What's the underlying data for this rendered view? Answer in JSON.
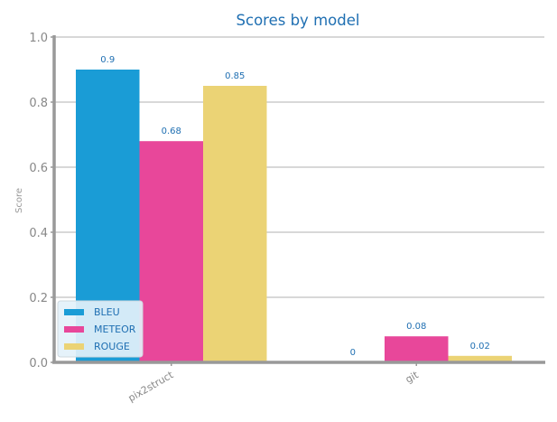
{
  "chart_data": {
    "type": "bar",
    "title": "Scores by model",
    "xlabel": "",
    "ylabel": "Score",
    "ylim": [
      0,
      1.0
    ],
    "yticks": [
      "0.0",
      "0.2",
      "0.4",
      "0.6",
      "0.8",
      "1.0"
    ],
    "categories": [
      "pix2struct",
      "git"
    ],
    "series": [
      {
        "name": "BLEU",
        "values": [
          0.9,
          0
        ],
        "labels": [
          "0.9",
          "0"
        ],
        "color": "#1a9cd6"
      },
      {
        "name": "METEOR",
        "values": [
          0.68,
          0.08
        ],
        "labels": [
          "0.68",
          "0.08"
        ],
        "color": "#e8479a"
      },
      {
        "name": "ROUGE",
        "values": [
          0.85,
          0.02
        ],
        "labels": [
          "0.85",
          "0.02"
        ],
        "color": "#ebd375"
      }
    ],
    "grid": true,
    "legend_position": "bottom-left",
    "colors": {
      "title": "#1f6fb2",
      "tick": "#888888",
      "axis": "#999999",
      "grid": "#cccccc",
      "data_label": "#1f6fb2",
      "legend_text": "#1f6fb2",
      "legend_bg": "#e3f1fa"
    }
  }
}
